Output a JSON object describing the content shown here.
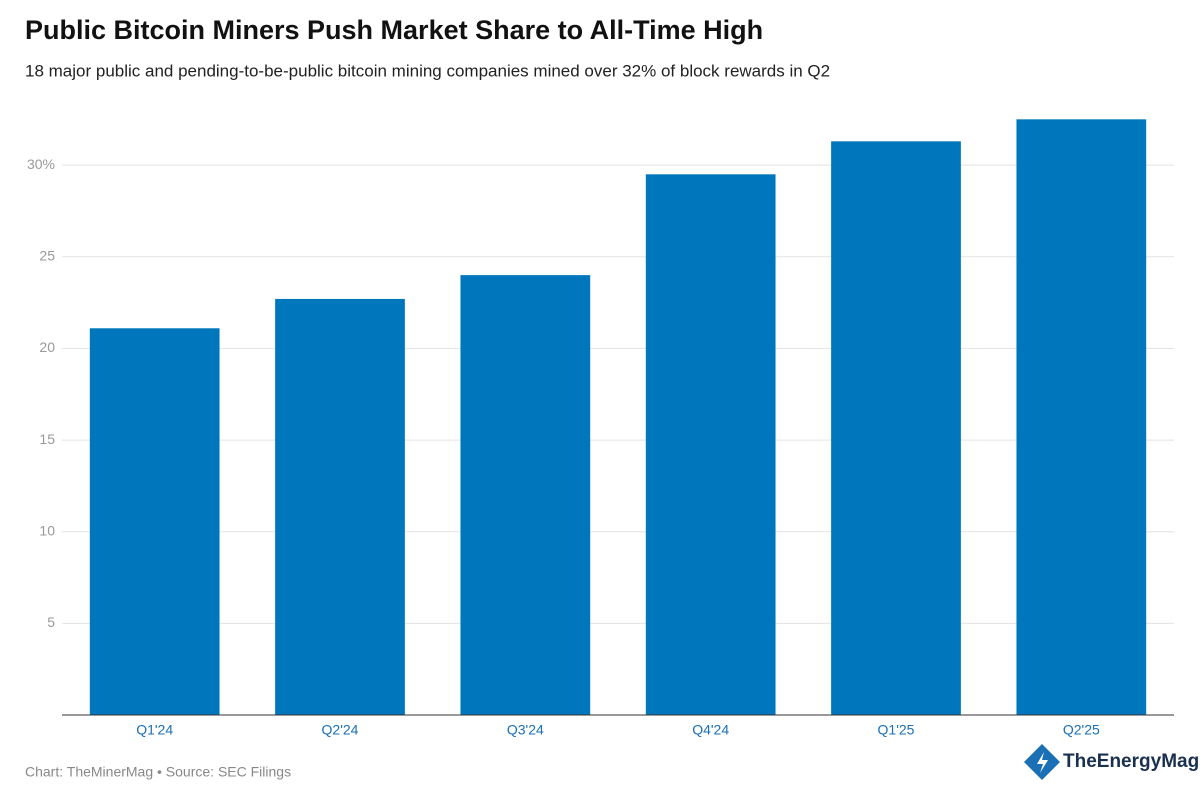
{
  "chart_data": {
    "type": "bar",
    "title": "Public Bitcoin Miners Push Market Share to All-Time High",
    "subtitle": "18 major public and pending-to-be-public bitcoin mining companies mined over 32% of block rewards in Q2",
    "categories": [
      "Q1'24",
      "Q2'24",
      "Q3'24",
      "Q4'24",
      "Q1'25",
      "Q2'25"
    ],
    "values": [
      21.1,
      22.7,
      24.0,
      29.5,
      31.3,
      32.5
    ],
    "color": "#0077bd",
    "ylim": [
      0,
      33.5
    ],
    "yticks": [
      5,
      10,
      15,
      20,
      25,
      {
        "value": 30,
        "label": "30%"
      }
    ],
    "grid": true,
    "source": "Chart: TheMinerMag • Source: SEC Filings",
    "logo": "TheEnergyMag"
  }
}
